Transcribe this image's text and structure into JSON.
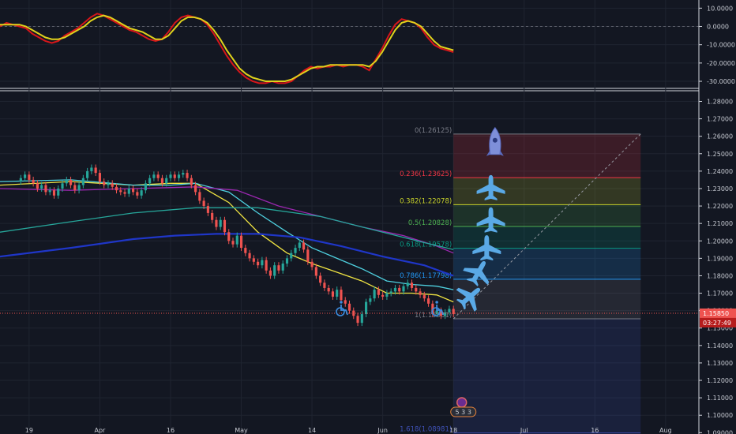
{
  "chart_data": [
    {
      "type": "line",
      "pane": "oscillator",
      "ylim": [
        -33,
        11
      ],
      "y_ticks": [
        "10.0000",
        "0.0000",
        "-10.0000",
        "-20.0000",
        "-30.0000"
      ],
      "y_tick_values": [
        10,
        0,
        -10,
        -20,
        -30
      ],
      "zero_line": 0,
      "series": [
        {
          "color": "#d8161a",
          "values": [
            0,
            2,
            1,
            0,
            -1,
            -4,
            -6,
            -8,
            -9,
            -8,
            -5,
            -3,
            -1,
            2,
            5,
            7,
            6,
            4,
            2,
            0,
            -2,
            -3,
            -5,
            -7,
            -8,
            -7,
            -3,
            2,
            5,
            6,
            5,
            4,
            1,
            -4,
            -10,
            -16,
            -21,
            -25,
            -28,
            -30,
            -31,
            -31,
            -30,
            -31,
            -31,
            -30,
            -27,
            -24,
            -22,
            -23,
            -22,
            -22,
            -21,
            -22,
            -21,
            -21,
            -22,
            -24,
            -18,
            -12,
            -5,
            1,
            4,
            3,
            2,
            -1,
            -6,
            -10,
            -12,
            -13,
            -14
          ]
        },
        {
          "color": "#e0d21c",
          "values": [
            1,
            1,
            1,
            1,
            0,
            -2,
            -4,
            -6,
            -7,
            -7,
            -6,
            -4,
            -2,
            0,
            3,
            5,
            6,
            5,
            3,
            1,
            -1,
            -2,
            -3,
            -5,
            -7,
            -7,
            -5,
            -1,
            3,
            5,
            5,
            4,
            2,
            -2,
            -7,
            -13,
            -18,
            -23,
            -26,
            -28,
            -29,
            -30,
            -30,
            -30,
            -30,
            -29,
            -27,
            -25,
            -23,
            -22,
            -22,
            -21,
            -21,
            -21,
            -21,
            -21,
            -21,
            -22,
            -19,
            -14,
            -8,
            -2,
            2,
            3,
            2,
            0,
            -4,
            -8,
            -11,
            -12,
            -13
          ]
        }
      ]
    },
    {
      "type": "candlestick",
      "pane": "price",
      "ylim": [
        1.0915,
        1.2852
      ],
      "y_ticks": [
        "1.28000",
        "1.27000",
        "1.26000",
        "1.25000",
        "1.24000",
        "1.23000",
        "1.22000",
        "1.21000",
        "1.20000",
        "1.19000",
        "1.18000",
        "1.17000",
        "1.16000",
        "1.15000",
        "1.14000",
        "1.13000",
        "1.12000",
        "1.11000",
        "1.10000",
        "1.09000"
      ],
      "y_tick_values": [
        1.28,
        1.27,
        1.26,
        1.25,
        1.24,
        1.23,
        1.22,
        1.21,
        1.2,
        1.19,
        1.18,
        1.17,
        1.16,
        1.15,
        1.14,
        1.13,
        1.12,
        1.11,
        1.1,
        1.09
      ],
      "x_ticks": [
        "19",
        "Apr",
        "16",
        "May",
        "14",
        "Jun",
        "18",
        "Jul",
        "16",
        "Aug"
      ],
      "x_tick_positions": [
        0,
        17,
        34,
        51,
        68,
        85,
        102,
        119,
        136,
        153
      ],
      "x_range": [
        -7,
        161
      ],
      "current_price": {
        "label": "1.15850",
        "value": 1.1585,
        "countdown": "03:27:49",
        "color": "#ef5350"
      },
      "ohlc_close": [
        1.236,
        1.238,
        1.235,
        1.233,
        1.23,
        1.232,
        1.228,
        1.229,
        1.226,
        1.23,
        1.233,
        1.235,
        1.232,
        1.229,
        1.232,
        1.236,
        1.24,
        1.242,
        1.239,
        1.234,
        1.232,
        1.233,
        1.231,
        1.229,
        1.228,
        1.227,
        1.23,
        1.228,
        1.226,
        1.229,
        1.233,
        1.236,
        1.238,
        1.236,
        1.233,
        1.236,
        1.238,
        1.236,
        1.238,
        1.239,
        1.236,
        1.232,
        1.228,
        1.223,
        1.22,
        1.216,
        1.212,
        1.208,
        1.212,
        1.205,
        1.2,
        1.198,
        1.203,
        1.196,
        1.193,
        1.19,
        1.188,
        1.186,
        1.189,
        1.183,
        1.18,
        1.186,
        1.183,
        1.187,
        1.19,
        1.193,
        1.196,
        1.199,
        1.195,
        1.188,
        1.185,
        1.18,
        1.176,
        1.173,
        1.171,
        1.168,
        1.172,
        1.166,
        1.164,
        1.16,
        1.157,
        1.153,
        1.158,
        1.165,
        1.167,
        1.172,
        1.169,
        1.168,
        1.17,
        1.171,
        1.173,
        1.171,
        1.174,
        1.176,
        1.173,
        1.171,
        1.169,
        1.167,
        1.164,
        1.158,
        1.16,
        1.157,
        1.159,
        1.161,
        1.158
      ],
      "ohlc_open": [
        1.234,
        1.236,
        1.238,
        1.235,
        1.233,
        1.23,
        1.232,
        1.228,
        1.229,
        1.226,
        1.23,
        1.233,
        1.235,
        1.232,
        1.229,
        1.232,
        1.236,
        1.24,
        1.242,
        1.239,
        1.234,
        1.232,
        1.233,
        1.231,
        1.229,
        1.228,
        1.227,
        1.23,
        1.228,
        1.226,
        1.229,
        1.233,
        1.236,
        1.238,
        1.236,
        1.233,
        1.236,
        1.238,
        1.236,
        1.238,
        1.239,
        1.236,
        1.232,
        1.228,
        1.223,
        1.22,
        1.216,
        1.212,
        1.208,
        1.212,
        1.205,
        1.2,
        1.198,
        1.203,
        1.196,
        1.193,
        1.19,
        1.188,
        1.186,
        1.189,
        1.183,
        1.18,
        1.186,
        1.183,
        1.187,
        1.19,
        1.193,
        1.196,
        1.199,
        1.195,
        1.188,
        1.185,
        1.18,
        1.176,
        1.173,
        1.171,
        1.168,
        1.172,
        1.166,
        1.164,
        1.16,
        1.157,
        1.153,
        1.158,
        1.165,
        1.167,
        1.172,
        1.169,
        1.168,
        1.17,
        1.171,
        1.173,
        1.171,
        1.174,
        1.176,
        1.173,
        1.171,
        1.169,
        1.167,
        1.164,
        1.158,
        1.16,
        1.157,
        1.159,
        1.161
      ],
      "moving_averages": [
        {
          "color": "#f0e442",
          "points": [
            [
              -7,
              1.232
            ],
            [
              10,
              1.234
            ],
            [
              25,
              1.232
            ],
            [
              34,
              1.233
            ],
            [
              40,
              1.233
            ],
            [
              48,
              1.222
            ],
            [
              55,
              1.205
            ],
            [
              62,
              1.193
            ],
            [
              68,
              1.187
            ],
            [
              74,
              1.182
            ],
            [
              80,
              1.177
            ],
            [
              86,
              1.17
            ],
            [
              92,
              1.17
            ],
            [
              98,
              1.169
            ],
            [
              102,
              1.165
            ]
          ]
        },
        {
          "color": "#4fd1e0",
          "points": [
            [
              -7,
              1.234
            ],
            [
              10,
              1.235
            ],
            [
              25,
              1.232
            ],
            [
              34,
              1.232
            ],
            [
              40,
              1.233
            ],
            [
              48,
              1.228
            ],
            [
              55,
              1.216
            ],
            [
              62,
              1.205
            ],
            [
              68,
              1.196
            ],
            [
              74,
              1.19
            ],
            [
              80,
              1.184
            ],
            [
              86,
              1.177
            ],
            [
              92,
              1.175
            ],
            [
              98,
              1.174
            ],
            [
              102,
              1.172
            ]
          ]
        },
        {
          "color": "#9c27b0",
          "points": [
            [
              -7,
              1.23
            ],
            [
              10,
              1.229
            ],
            [
              25,
              1.23
            ],
            [
              40,
              1.231
            ],
            [
              50,
              1.229
            ],
            [
              60,
              1.22
            ],
            [
              70,
              1.214
            ],
            [
              80,
              1.208
            ],
            [
              90,
              1.203
            ],
            [
              98,
              1.197
            ],
            [
              102,
              1.193
            ]
          ]
        },
        {
          "color": "#26a69a",
          "points": [
            [
              -7,
              1.205
            ],
            [
              10,
              1.211
            ],
            [
              25,
              1.216
            ],
            [
              40,
              1.219
            ],
            [
              55,
              1.219
            ],
            [
              70,
              1.214
            ],
            [
              85,
              1.205
            ],
            [
              95,
              1.199
            ],
            [
              102,
              1.195
            ]
          ]
        },
        {
          "color": "#1f36c8",
          "points": [
            [
              -7,
              1.191
            ],
            [
              10,
              1.196
            ],
            [
              25,
              1.201
            ],
            [
              35,
              1.203
            ],
            [
              45,
              1.204
            ],
            [
              55,
              1.204
            ],
            [
              65,
              1.202
            ],
            [
              75,
              1.197
            ],
            [
              85,
              1.191
            ],
            [
              95,
              1.186
            ],
            [
              102,
              1.18
            ]
          ]
        }
      ],
      "fibonacci": {
        "x_start": 102,
        "x_end": 147,
        "levels": [
          {
            "label": "0(1.26125)",
            "value": 1.26125,
            "color": "#787b86"
          },
          {
            "label": "0.236(1.23625)",
            "value": 1.23625,
            "color": "#f23645"
          },
          {
            "label": "0.382(1.22078)",
            "value": 1.22078,
            "color": "#c8d22a"
          },
          {
            "label": "0.5(1.20828)",
            "value": 1.20828,
            "color": "#4caf50"
          },
          {
            "label": "0.618(1.19578)",
            "value": 1.19578,
            "color": "#089981"
          },
          {
            "label": "0.786(1.17798)",
            "value": 1.17798,
            "color": "#2196f3"
          },
          {
            "label": "1(1.15531)",
            "value": 1.15531,
            "color": "#787b86"
          },
          {
            "label": "1.618(1.08981)",
            "value": 1.08981,
            "color": "#3f51b5"
          }
        ],
        "diagonal": [
          [
            102,
            1.1553
          ],
          [
            147,
            1.2613
          ]
        ]
      },
      "annotations": [
        {
          "icon": "wheelchair-icon",
          "x": 75,
          "y": 1.1612
        },
        {
          "icon": "wheelchair-icon",
          "x": 98,
          "y": 1.1612
        },
        {
          "icon": "rocket-icon",
          "x": 112,
          "y": 1.255
        },
        {
          "icon": "airplane-icon",
          "x": 111,
          "y": 1.2305
        },
        {
          "icon": "airplane-icon",
          "x": 111,
          "y": 1.212
        },
        {
          "icon": "airplane-icon",
          "x": 110,
          "y": 1.196
        },
        {
          "icon": "airplane-icon",
          "x": 108,
          "y": 1.182
        },
        {
          "icon": "airplane-icon",
          "x": 106,
          "y": 1.168
        }
      ],
      "badges": {
        "top": "☼",
        "label": "5 3 3"
      }
    }
  ]
}
